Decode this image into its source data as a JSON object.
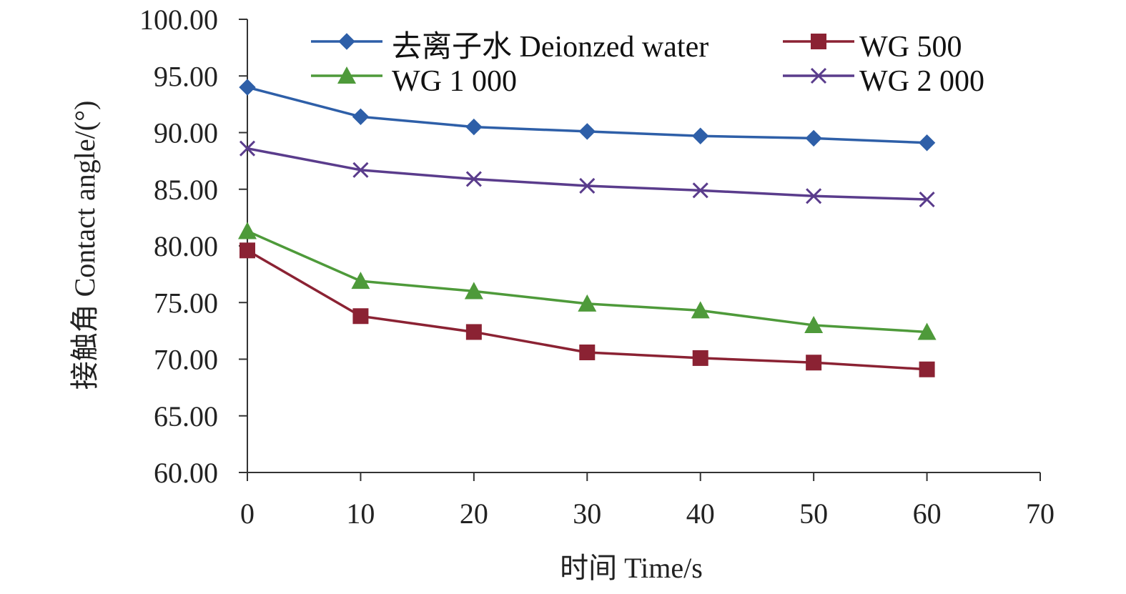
{
  "chart_data": {
    "type": "line",
    "title": "",
    "xlabel": "时间 Time/s",
    "ylabel": "接触角 Contact angle/(°)",
    "xlim": [
      0,
      70
    ],
    "ylim": [
      60,
      100
    ],
    "xticks": [
      "0",
      "10",
      "20",
      "30",
      "40",
      "50",
      "60",
      "70"
    ],
    "yticks": [
      "60.00",
      "65.00",
      "70.00",
      "75.00",
      "80.00",
      "85.00",
      "90.00",
      "95.00",
      "100.00"
    ],
    "x": [
      0,
      10,
      20,
      30,
      40,
      50,
      60
    ],
    "legend_position": "top",
    "series": [
      {
        "name": "去离子水 Deionzed water",
        "marker": "diamond",
        "color": "#2E5FA8",
        "values": [
          94.0,
          91.4,
          90.5,
          90.1,
          89.7,
          89.5,
          89.1
        ]
      },
      {
        "name": "WG 500",
        "marker": "square",
        "color": "#8B2233",
        "values": [
          79.6,
          73.8,
          72.4,
          70.6,
          70.1,
          69.7,
          69.1
        ]
      },
      {
        "name": "WG 1 000",
        "marker": "triangle",
        "color": "#4E9A3A",
        "values": [
          81.3,
          76.9,
          76.0,
          74.9,
          74.3,
          73.0,
          72.4
        ]
      },
      {
        "name": "WG 2 000",
        "marker": "x",
        "color": "#5A3C8C",
        "values": [
          88.6,
          86.7,
          85.9,
          85.3,
          84.9,
          84.4,
          84.1
        ]
      }
    ]
  }
}
